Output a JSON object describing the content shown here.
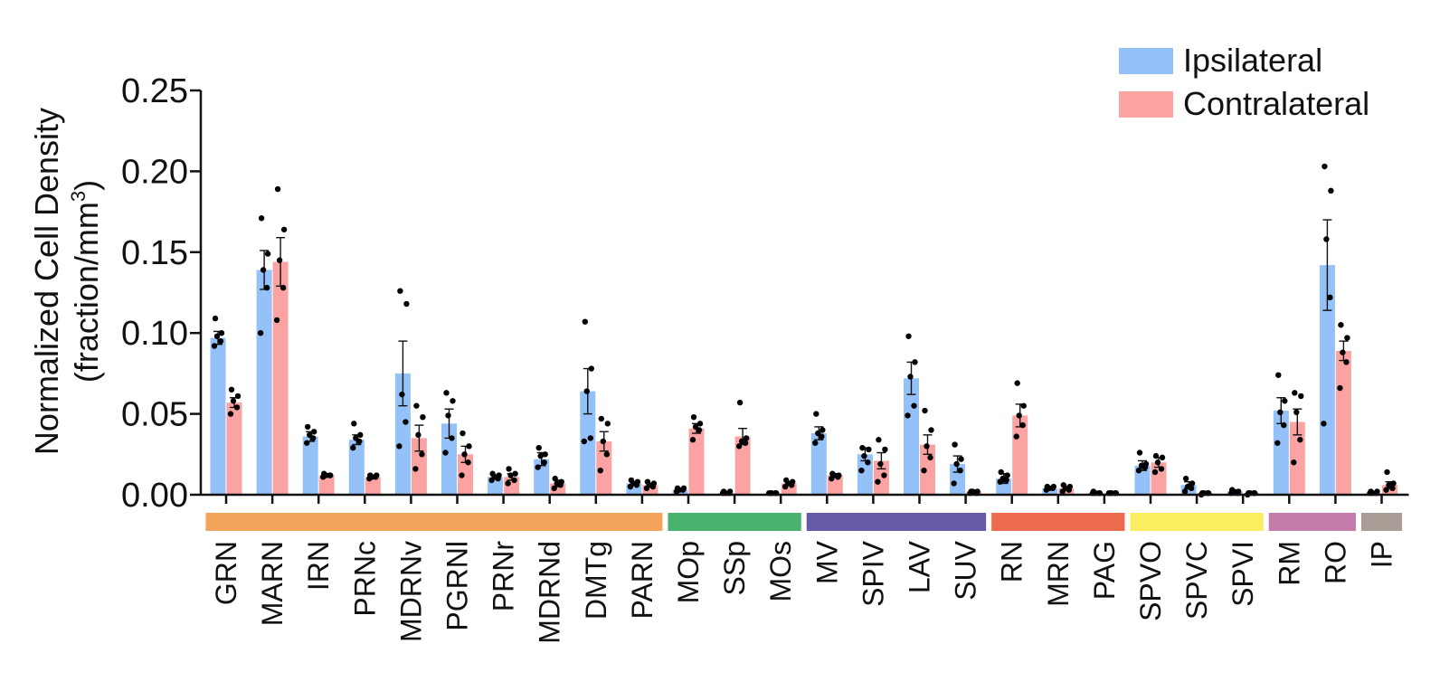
{
  "chart_data": {
    "type": "bar",
    "ylabel_line1": "Normalized Cell Density",
    "ylabel_line2_prefix": "(fraction/mm",
    "ylabel_line2_sup": "3",
    "ylabel_line2_suffix": ")",
    "ylim": [
      0,
      0.25
    ],
    "yticks": [
      "0.00",
      "0.05",
      "0.10",
      "0.15",
      "0.20",
      "0.25"
    ],
    "ytick_values": [
      0,
      0.05,
      0.1,
      0.15,
      0.2,
      0.25
    ],
    "categories": [
      "GRN",
      "MARN",
      "IRN",
      "PRNc",
      "MDRNv",
      "PGRNl",
      "PRNr",
      "MDRNd",
      "DMTg",
      "PARN",
      "MOp",
      "SSp",
      "MOs",
      "MV",
      "SPIV",
      "LAV",
      "SUV",
      "RN",
      "MRN",
      "PAG",
      "SPVO",
      "SPVC",
      "SPVI",
      "RM",
      "RO",
      "IP"
    ],
    "series": [
      {
        "name": "Ipsilateral",
        "color": "#94c1f8",
        "values": [
          0.097,
          0.139,
          0.036,
          0.034,
          0.075,
          0.044,
          0.011,
          0.022,
          0.064,
          0.007,
          0.003,
          0.001,
          0.001,
          0.038,
          0.025,
          0.072,
          0.019,
          0.01,
          0.004,
          0.001,
          0.018,
          0.006,
          0.002,
          0.052,
          0.142,
          0.001
        ],
        "errors": [
          0.004,
          0.012,
          0.003,
          0.003,
          0.02,
          0.009,
          0.001,
          0.004,
          0.014,
          0.001,
          0.001,
          0.0005,
          0.0005,
          0.004,
          0.004,
          0.01,
          0.005,
          0.003,
          0.001,
          0.0005,
          0.003,
          0.002,
          0.001,
          0.008,
          0.028,
          0.0005
        ],
        "points": [
          [
            0.092,
            0.095,
            0.098,
            0.1,
            0.109
          ],
          [
            0.1,
            0.128,
            0.139,
            0.149,
            0.171
          ],
          [
            0.032,
            0.035,
            0.037,
            0.039,
            0.042
          ],
          [
            0.029,
            0.033,
            0.035,
            0.037,
            0.044
          ],
          [
            0.03,
            0.045,
            0.062,
            0.118,
            0.126
          ],
          [
            0.026,
            0.035,
            0.049,
            0.058,
            0.063
          ],
          [
            0.009,
            0.01,
            0.011,
            0.012,
            0.013
          ],
          [
            0.017,
            0.02,
            0.024,
            0.025,
            0.029
          ],
          [
            0.033,
            0.035,
            0.064,
            0.078,
            0.107
          ],
          [
            0.005,
            0.006,
            0.007,
            0.008,
            0.009
          ],
          [
            0.002,
            0.003,
            0.003,
            0.004,
            0.004
          ],
          [
            0.001,
            0.001,
            0.001,
            0.002,
            0.002
          ],
          [
            0.001,
            0.001,
            0.001,
            0.001,
            0.001
          ],
          [
            0.032,
            0.036,
            0.038,
            0.04,
            0.05
          ],
          [
            0.015,
            0.02,
            0.024,
            0.028,
            0.029
          ],
          [
            0.049,
            0.055,
            0.073,
            0.082,
            0.098
          ],
          [
            0.007,
            0.015,
            0.019,
            0.022,
            0.031
          ],
          [
            0.008,
            0.009,
            0.01,
            0.012,
            0.014
          ],
          [
            0.003,
            0.004,
            0.004,
            0.005,
            0.005
          ],
          [
            0.001,
            0.001,
            0.001,
            0.001,
            0.002
          ],
          [
            0.015,
            0.017,
            0.018,
            0.019,
            0.026
          ],
          [
            0.002,
            0.004,
            0.005,
            0.007,
            0.01
          ],
          [
            0.001,
            0.001,
            0.002,
            0.002,
            0.003
          ],
          [
            0.032,
            0.043,
            0.051,
            0.058,
            0.074
          ],
          [
            0.044,
            0.122,
            0.158,
            0.188,
            0.203
          ],
          [
            0.001,
            0.001,
            0.001,
            0.002,
            0.002
          ]
        ]
      },
      {
        "name": "Contralateral",
        "color": "#fba3a3",
        "values": [
          0.057,
          0.144,
          0.012,
          0.011,
          0.035,
          0.025,
          0.011,
          0.007,
          0.033,
          0.006,
          0.041,
          0.036,
          0.007,
          0.012,
          0.021,
          0.031,
          0.002,
          0.049,
          0.004,
          0.001,
          0.02,
          0.001,
          0.001,
          0.045,
          0.089,
          0.006
        ],
        "errors": [
          0.003,
          0.015,
          0.001,
          0.001,
          0.008,
          0.005,
          0.002,
          0.002,
          0.006,
          0.001,
          0.003,
          0.005,
          0.001,
          0.001,
          0.005,
          0.006,
          0.0005,
          0.007,
          0.001,
          0.0005,
          0.003,
          0.0005,
          0.0005,
          0.008,
          0.006,
          0.002
        ],
        "points": [
          [
            0.05,
            0.054,
            0.058,
            0.061,
            0.065
          ],
          [
            0.108,
            0.128,
            0.145,
            0.164,
            0.189
          ],
          [
            0.011,
            0.012,
            0.012,
            0.012,
            0.013
          ],
          [
            0.01,
            0.011,
            0.011,
            0.012,
            0.012
          ],
          [
            0.016,
            0.025,
            0.037,
            0.048,
            0.055
          ],
          [
            0.012,
            0.02,
            0.025,
            0.03,
            0.038
          ],
          [
            0.007,
            0.009,
            0.012,
            0.013,
            0.016
          ],
          [
            0.004,
            0.006,
            0.007,
            0.008,
            0.01
          ],
          [
            0.015,
            0.025,
            0.033,
            0.044,
            0.047
          ],
          [
            0.004,
            0.005,
            0.006,
            0.007,
            0.008
          ],
          [
            0.034,
            0.04,
            0.042,
            0.044,
            0.048
          ],
          [
            0.03,
            0.032,
            0.033,
            0.035,
            0.057
          ],
          [
            0.005,
            0.006,
            0.007,
            0.008,
            0.009
          ],
          [
            0.01,
            0.011,
            0.012,
            0.012,
            0.013
          ],
          [
            0.008,
            0.012,
            0.019,
            0.028,
            0.034
          ],
          [
            0.015,
            0.023,
            0.03,
            0.04,
            0.052
          ],
          [
            0.001,
            0.001,
            0.002,
            0.002,
            0.002
          ],
          [
            0.036,
            0.043,
            0.049,
            0.055,
            0.069
          ],
          [
            0.002,
            0.003,
            0.004,
            0.005,
            0.006
          ],
          [
            0.001,
            0.001,
            0.001,
            0.001,
            0.001
          ],
          [
            0.014,
            0.016,
            0.02,
            0.023,
            0.024
          ],
          [
            0.0,
            0.001,
            0.001,
            0.001,
            0.001
          ],
          [
            0.0,
            0.001,
            0.001,
            0.001,
            0.001
          ],
          [
            0.02,
            0.034,
            0.051,
            0.061,
            0.063
          ],
          [
            0.066,
            0.082,
            0.088,
            0.097,
            0.105
          ],
          [
            0.003,
            0.004,
            0.006,
            0.007,
            0.014
          ]
        ]
      }
    ],
    "groups": [
      {
        "color": "#f4a45b",
        "start": 0,
        "end": 9
      },
      {
        "color": "#47b36f",
        "start": 10,
        "end": 12
      },
      {
        "color": "#6659a8",
        "start": 13,
        "end": 16
      },
      {
        "color": "#ec6a4e",
        "start": 17,
        "end": 19
      },
      {
        "color": "#fbed5f",
        "start": 20,
        "end": 22
      },
      {
        "color": "#c47dab",
        "start": 23,
        "end": 24
      },
      {
        "color": "#a89c94",
        "start": 25,
        "end": 25
      }
    ],
    "legend": {
      "position": "top-right",
      "items": [
        "Ipsilateral",
        "Contralateral"
      ]
    },
    "grid": false
  }
}
